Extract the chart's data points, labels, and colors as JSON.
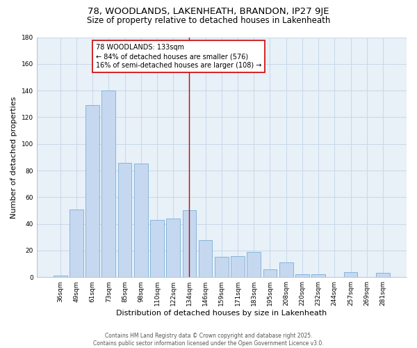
{
  "title1": "78, WOODLANDS, LAKENHEATH, BRANDON, IP27 9JE",
  "title2": "Size of property relative to detached houses in Lakenheath",
  "xlabel": "Distribution of detached houses by size in Lakenheath",
  "ylabel": "Number of detached properties",
  "bar_labels": [
    "36sqm",
    "49sqm",
    "61sqm",
    "73sqm",
    "85sqm",
    "98sqm",
    "110sqm",
    "122sqm",
    "134sqm",
    "146sqm",
    "159sqm",
    "171sqm",
    "183sqm",
    "195sqm",
    "208sqm",
    "220sqm",
    "232sqm",
    "244sqm",
    "257sqm",
    "269sqm",
    "281sqm"
  ],
  "bar_values": [
    1,
    51,
    129,
    140,
    86,
    85,
    43,
    44,
    50,
    28,
    15,
    16,
    19,
    6,
    11,
    2,
    2,
    0,
    4,
    0,
    3
  ],
  "bar_color": "#c5d8f0",
  "bar_edgecolor": "#7aaed6",
  "vline_x": 8,
  "vline_color": "#cc0000",
  "annotation_text": "78 WOODLANDS: 133sqm\n← 84% of detached houses are smaller (576)\n16% of semi-detached houses are larger (108) →",
  "annotation_box_color": "#ffffff",
  "annotation_box_edgecolor": "#cc0000",
  "annotation_fontsize": 7.0,
  "ylim": [
    0,
    180
  ],
  "yticks": [
    0,
    20,
    40,
    60,
    80,
    100,
    120,
    140,
    160,
    180
  ],
  "grid_color": "#c8d8e8",
  "background_color": "#ffffff",
  "plot_bg_color": "#e8f0f8",
  "footer_text": "Contains HM Land Registry data © Crown copyright and database right 2025.\nContains public sector information licensed under the Open Government Licence v3.0.",
  "title1_fontsize": 9.5,
  "title2_fontsize": 8.5,
  "xlabel_fontsize": 8,
  "ylabel_fontsize": 8,
  "tick_fontsize": 6.5,
  "footer_fontsize": 5.5
}
